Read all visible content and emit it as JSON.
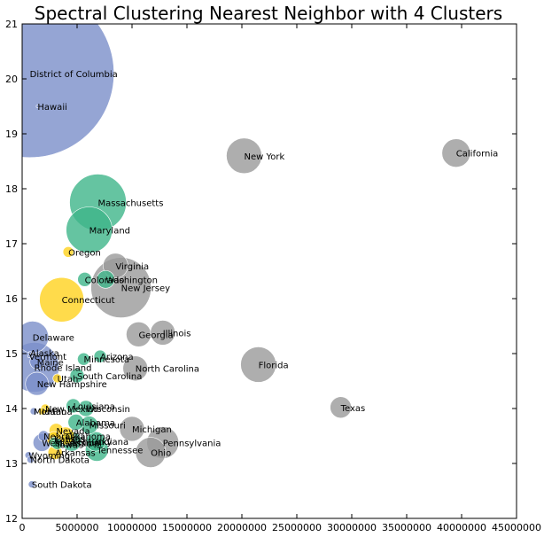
{
  "chart_data": {
    "type": "scatter",
    "title": "Spectral Clustering Nearest Neighbor with 4 Clusters",
    "xlabel": "",
    "ylabel": "",
    "xlim": [
      0,
      45000000
    ],
    "ylim": [
      12,
      21
    ],
    "xticks": [
      0,
      5000000,
      10000000,
      15000000,
      20000000,
      25000000,
      30000000,
      35000000,
      40000000,
      45000000
    ],
    "yticks": [
      12,
      13,
      14,
      15,
      16,
      17,
      18,
      19,
      20,
      21
    ],
    "grid": false,
    "cluster_colors": {
      "blue": "#7b8fc9",
      "green": "#3fb58a",
      "gray": "#9a9a9a",
      "yellow": "#ffd21e"
    },
    "points": [
      {
        "label": "District of Columbia",
        "x": 700000,
        "y": 20.1,
        "size": 95,
        "cluster": "blue"
      },
      {
        "label": "Hawaii",
        "x": 1400000,
        "y": 19.5,
        "size": 0,
        "cluster": "blue"
      },
      {
        "label": "New York",
        "x": 20200000,
        "y": 18.6,
        "size": 20,
        "cluster": "gray"
      },
      {
        "label": "California",
        "x": 39500000,
        "y": 18.65,
        "size": 16,
        "cluster": "gray"
      },
      {
        "label": "Massachusetts",
        "x": 6900000,
        "y": 17.75,
        "size": 32,
        "cluster": "green"
      },
      {
        "label": "Maryland",
        "x": 6100000,
        "y": 17.25,
        "size": 26,
        "cluster": "green"
      },
      {
        "label": "Oregon",
        "x": 4200000,
        "y": 16.85,
        "size": 6,
        "cluster": "yellow"
      },
      {
        "label": "Virginia",
        "x": 8500000,
        "y": 16.6,
        "size": 14,
        "cluster": "gray"
      },
      {
        "label": "Colorado",
        "x": 5700000,
        "y": 16.35,
        "size": 8,
        "cluster": "green"
      },
      {
        "label": "Washington",
        "x": 7600000,
        "y": 16.35,
        "size": 10,
        "cluster": "green"
      },
      {
        "label": "New Jersey",
        "x": 9000000,
        "y": 16.2,
        "size": 34,
        "cluster": "gray"
      },
      {
        "label": "Connecticut",
        "x": 3600000,
        "y": 15.98,
        "size": 25,
        "cluster": "yellow"
      },
      {
        "label": "Delaware",
        "x": 950000,
        "y": 15.3,
        "size": 18,
        "cluster": "blue"
      },
      {
        "label": "Georgia",
        "x": 10600000,
        "y": 15.35,
        "size": 14,
        "cluster": "gray"
      },
      {
        "label": "Illinois",
        "x": 12800000,
        "y": 15.38,
        "size": 14,
        "cluster": "gray"
      },
      {
        "label": "Alaska",
        "x": 730000,
        "y": 15.02,
        "size": 0,
        "cluster": "blue"
      },
      {
        "label": "Vermont",
        "x": 630000,
        "y": 14.95,
        "size": 0,
        "cluster": "blue"
      },
      {
        "label": "Maine",
        "x": 1350000,
        "y": 14.85,
        "size": 8,
        "cluster": "blue"
      },
      {
        "label": "Rhode Island",
        "x": 1100000,
        "y": 14.75,
        "size": 28,
        "cluster": "blue"
      },
      {
        "label": "Minnesota",
        "x": 5600000,
        "y": 14.9,
        "size": 7,
        "cluster": "green"
      },
      {
        "label": "Arizona",
        "x": 7100000,
        "y": 14.95,
        "size": 7,
        "cluster": "green"
      },
      {
        "label": "North Carolina",
        "x": 10300000,
        "y": 14.73,
        "size": 14,
        "cluster": "gray"
      },
      {
        "label": "Florida",
        "x": 21500000,
        "y": 14.8,
        "size": 20,
        "cluster": "gray"
      },
      {
        "label": "South Carolina",
        "x": 5000000,
        "y": 14.6,
        "size": 8,
        "cluster": "green"
      },
      {
        "label": "Utah",
        "x": 3200000,
        "y": 14.55,
        "size": 5,
        "cluster": "yellow"
      },
      {
        "label": "New Hampshire",
        "x": 1350000,
        "y": 14.45,
        "size": 13,
        "cluster": "blue"
      },
      {
        "label": "Louisiana",
        "x": 4650000,
        "y": 14.05,
        "size": 8,
        "cluster": "green"
      },
      {
        "label": "Wisconsin",
        "x": 5800000,
        "y": 14.0,
        "size": 9,
        "cluster": "green"
      },
      {
        "label": "New Mexico",
        "x": 2100000,
        "y": 14.0,
        "size": 5,
        "cluster": "yellow"
      },
      {
        "label": "Montana",
        "x": 1050000,
        "y": 13.95,
        "size": 4,
        "cluster": "blue"
      },
      {
        "label": "Idaho",
        "x": 1800000,
        "y": 13.95,
        "size": 4,
        "cluster": "yellow"
      },
      {
        "label": "Texas",
        "x": 29000000,
        "y": 14.02,
        "size": 12,
        "cluster": "gray"
      },
      {
        "label": "Alabama",
        "x": 4900000,
        "y": 13.75,
        "size": 9,
        "cluster": "green"
      },
      {
        "label": "Missouri",
        "x": 6100000,
        "y": 13.7,
        "size": 10,
        "cluster": "green"
      },
      {
        "label": "Nevada",
        "x": 3100000,
        "y": 13.6,
        "size": 8,
        "cluster": "yellow"
      },
      {
        "label": "Michigan",
        "x": 10000000,
        "y": 13.63,
        "size": 14,
        "cluster": "gray"
      },
      {
        "label": "Nebraska",
        "x": 1950000,
        "y": 13.5,
        "size": 6,
        "cluster": "blue"
      },
      {
        "label": "Oklahoma",
        "x": 3950000,
        "y": 13.5,
        "size": 10,
        "cluster": "yellow"
      },
      {
        "label": "Kansas",
        "x": 2900000,
        "y": 13.45,
        "size": 8,
        "cluster": "yellow"
      },
      {
        "label": "Mississippi",
        "x": 2950000,
        "y": 13.38,
        "size": 6,
        "cluster": "green"
      },
      {
        "label": "Iowa",
        "x": 3200000,
        "y": 13.35,
        "size": 6,
        "cluster": "green"
      },
      {
        "label": "Kentucky",
        "x": 4500000,
        "y": 13.4,
        "size": 11,
        "cluster": "green"
      },
      {
        "label": "Indiana",
        "x": 6700000,
        "y": 13.4,
        "size": 11,
        "cluster": "green"
      },
      {
        "label": "West Virginia",
        "x": 1800000,
        "y": 13.38,
        "size": 10,
        "cluster": "blue"
      },
      {
        "label": "Pennsylvania",
        "x": 12800000,
        "y": 13.38,
        "size": 18,
        "cluster": "gray"
      },
      {
        "label": "Arkansas",
        "x": 3000000,
        "y": 13.2,
        "size": 8,
        "cluster": "yellow"
      },
      {
        "label": "Tennessee",
        "x": 6800000,
        "y": 13.25,
        "size": 13,
        "cluster": "green"
      },
      {
        "label": "Wyoming",
        "x": 580000,
        "y": 13.15,
        "size": 4,
        "cluster": "blue"
      },
      {
        "label": "Ohio",
        "x": 11700000,
        "y": 13.2,
        "size": 17,
        "cluster": "gray"
      },
      {
        "label": "North Dakota",
        "x": 760000,
        "y": 13.07,
        "size": 4,
        "cluster": "blue"
      },
      {
        "label": "South Dakota",
        "x": 880000,
        "y": 12.62,
        "size": 4,
        "cluster": "blue"
      }
    ]
  }
}
